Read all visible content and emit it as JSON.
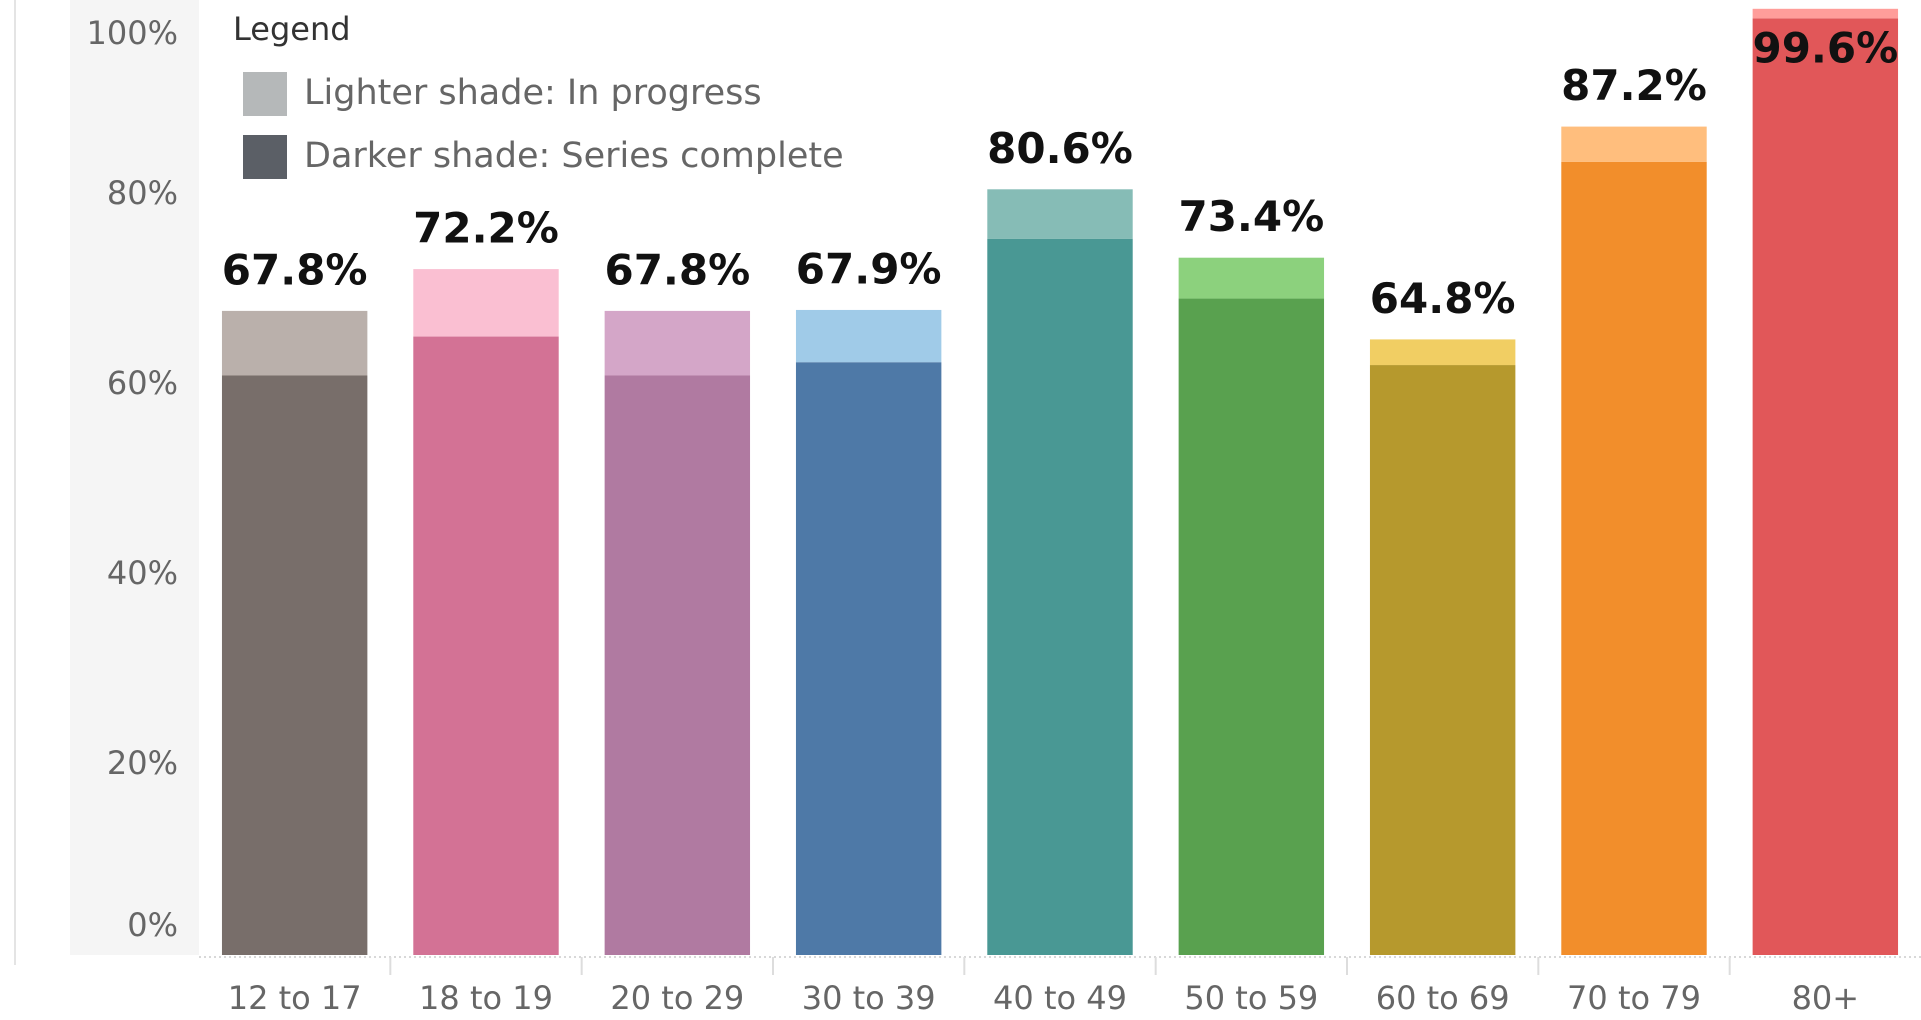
{
  "chart_data": {
    "type": "stacked_bar",
    "legend_title": "Legend",
    "legend_position": "top-left",
    "grid": false,
    "categories": [
      "12 to 17",
      "18 to 19",
      "20 to 29",
      "30 to 39",
      "40 to 49",
      "50 to 59",
      "60 to 69",
      "70 to 79",
      "80+"
    ],
    "series": [
      {
        "name": "Darker shade: Series complete",
        "color": "#5b5f66",
        "colors": [
          "#786e6a",
          "#d37295",
          "#b07aa1",
          "#4e79a7",
          "#499894",
          "#59a14f",
          "#b6992d",
          "#f28e2b",
          "#e15759"
        ],
        "values": [
          61.0,
          65.1,
          61.0,
          62.4,
          75.4,
          69.1,
          62.1,
          83.5,
          98.6
        ]
      },
      {
        "name": "Lighter shade: In progress",
        "color": "#b5b8b9",
        "colors": [
          "#bab0ab",
          "#fabfd2",
          "#d4a6c8",
          "#a0cbe8",
          "#86bcb6",
          "#8cd17d",
          "#f1ce63",
          "#ffbe7d",
          "#ff9d9a"
        ],
        "values": [
          6.8,
          7.1,
          6.8,
          5.5,
          5.2,
          4.3,
          2.7,
          3.7,
          1.0
        ]
      }
    ],
    "totals": {
      "values": [
        67.8,
        72.2,
        67.8,
        67.9,
        80.6,
        73.4,
        64.8,
        87.2,
        99.6
      ],
      "value_labels": [
        "67.8%",
        "72.2%",
        "67.8%",
        "67.9%",
        "80.6%",
        "73.4%",
        "64.8%",
        "87.2%",
        "99.6%"
      ]
    },
    "ylim": [
      0,
      100
    ],
    "yticks": [
      {
        "value": 0,
        "label": "0%"
      },
      {
        "value": 20,
        "label": "20%"
      },
      {
        "value": 40,
        "label": "40%"
      },
      {
        "value": 60,
        "label": "60%"
      },
      {
        "value": 80,
        "label": "80%"
      },
      {
        "value": 100,
        "label": "100%"
      }
    ]
  }
}
